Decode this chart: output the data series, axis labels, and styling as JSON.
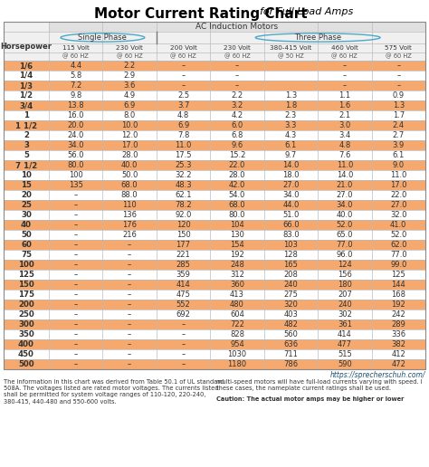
{
  "title": "Motor Current Rating Chart",
  "title_suffix": "for Full Load Amps",
  "subtitle": "AC Induction Motors",
  "col_headers_volt": [
    "115 Volt",
    "230 Volt",
    "200 Volt",
    "230 Volt",
    "380-415 Volt",
    "460 Volt",
    "575 Volt"
  ],
  "col_headers_hz": [
    "@ 60 HZ",
    "@ 60 HZ",
    "@ 60 HZ",
    "@ 60 HZ",
    "@ 50 HZ",
    "@ 60 HZ",
    "@ 60 HZ"
  ],
  "row_label": "Horsepower",
  "rows": [
    [
      "1/6",
      "4.4",
      "2.2",
      "–",
      "–",
      "",
      "–",
      "–"
    ],
    [
      "1/4",
      "5.8",
      "2.9",
      "–",
      "–",
      "",
      "–",
      "–"
    ],
    [
      "1/3",
      "7.2",
      "3.6",
      "–",
      "–",
      "",
      "–",
      "–"
    ],
    [
      "1/2",
      "9.8",
      "4.9",
      "2.5",
      "2.2",
      "1.3",
      "1.1",
      "0.9"
    ],
    [
      "3/4",
      "13.8",
      "6.9",
      "3.7",
      "3.2",
      "1.8",
      "1.6",
      "1.3"
    ],
    [
      "1",
      "16.0",
      "8.0",
      "4.8",
      "4.2",
      "2.3",
      "2.1",
      "1.7"
    ],
    [
      "1 1/2",
      "20.0",
      "10.0",
      "6.9",
      "6.0",
      "3.3",
      "3.0",
      "2.4"
    ],
    [
      "2",
      "24.0",
      "12.0",
      "7.8",
      "6.8",
      "4.3",
      "3.4",
      "2.7"
    ],
    [
      "3",
      "34.0",
      "17.0",
      "11.0",
      "9.6",
      "6.1",
      "4.8",
      "3.9"
    ],
    [
      "5",
      "56.0",
      "28.0",
      "17.5",
      "15.2",
      "9.7",
      "7.6",
      "6.1"
    ],
    [
      "7 1/2",
      "80.0",
      "40.0",
      "25.3",
      "22.0",
      "14.0",
      "11.0",
      "9.0"
    ],
    [
      "10",
      "100",
      "50.0",
      "32.2",
      "28.0",
      "18.0",
      "14.0",
      "11.0"
    ],
    [
      "15",
      "135",
      "68.0",
      "48.3",
      "42.0",
      "27.0",
      "21.0",
      "17.0"
    ],
    [
      "20",
      "–",
      "88.0",
      "62.1",
      "54.0",
      "34.0",
      "27.0",
      "22.0"
    ],
    [
      "25",
      "–",
      "110",
      "78.2",
      "68.0",
      "44.0",
      "34.0",
      "27.0"
    ],
    [
      "30",
      "–",
      "136",
      "92.0",
      "80.0",
      "51.0",
      "40.0",
      "32.0"
    ],
    [
      "40",
      "–",
      "176",
      "120",
      "104",
      "66.0",
      "52.0",
      "41.0"
    ],
    [
      "50",
      "–",
      "216",
      "150",
      "130",
      "83.0",
      "65.0",
      "52.0"
    ],
    [
      "60",
      "–",
      "–",
      "177",
      "154",
      "103",
      "77.0",
      "62.0"
    ],
    [
      "75",
      "–",
      "–",
      "221",
      "192",
      "128",
      "96.0",
      "77.0"
    ],
    [
      "100",
      "–",
      "–",
      "285",
      "248",
      "165",
      "124",
      "99.0"
    ],
    [
      "125",
      "–",
      "–",
      "359",
      "312",
      "208",
      "156",
      "125"
    ],
    [
      "150",
      "–",
      "–",
      "414",
      "360",
      "240",
      "180",
      "144"
    ],
    [
      "175",
      "–",
      "–",
      "475",
      "413",
      "275",
      "207",
      "168"
    ],
    [
      "200",
      "–",
      "–",
      "552",
      "480",
      "320",
      "240",
      "192"
    ],
    [
      "250",
      "–",
      "–",
      "692",
      "604",
      "403",
      "302",
      "242"
    ],
    [
      "300",
      "–",
      "–",
      "–",
      "722",
      "482",
      "361",
      "289"
    ],
    [
      "350",
      "–",
      "–",
      "–",
      "828",
      "560",
      "414",
      "336"
    ],
    [
      "400",
      "–",
      "–",
      "–",
      "954",
      "636",
      "477",
      "382"
    ],
    [
      "450",
      "–",
      "–",
      "–",
      "1030",
      "711",
      "515",
      "412"
    ],
    [
      "500",
      "–",
      "–",
      "–",
      "1180",
      "786",
      "590",
      "472"
    ]
  ],
  "orange_rows": [
    0,
    2,
    4,
    6,
    8,
    10,
    12,
    14,
    16,
    18,
    20,
    22,
    24,
    26,
    28,
    30
  ],
  "orange_color": "#F5A96E",
  "white_color": "#FFFFFF",
  "header_bg_top": "#E8E8E8",
  "header_bg_mid": "#F0F0F0",
  "url": "https://sprecherschuh.com/",
  "footer_left1": "The information in this chart was derived from Table 50.1 of UL standard",
  "footer_left2": "508A. The voltages listed are rated motor voltages. The currents listed",
  "footer_left3": "shall be permitted for system voltage ranges of 110-120, 220-240,",
  "footer_left4": "380-415, 440-480 and 550-600 volts.",
  "footer_right1": "multi-speed motors will have full-load currents varying with speed. I",
  "footer_right2": "these cases, the nameplate current ratings shall be used.",
  "footer_right3": "",
  "footer_right4_bold": "Caution: The actual motor amps may be higher or lower",
  "circle_color": "#4BA8C8",
  "line_color": "#BBBBBB",
  "text_color": "#333333"
}
